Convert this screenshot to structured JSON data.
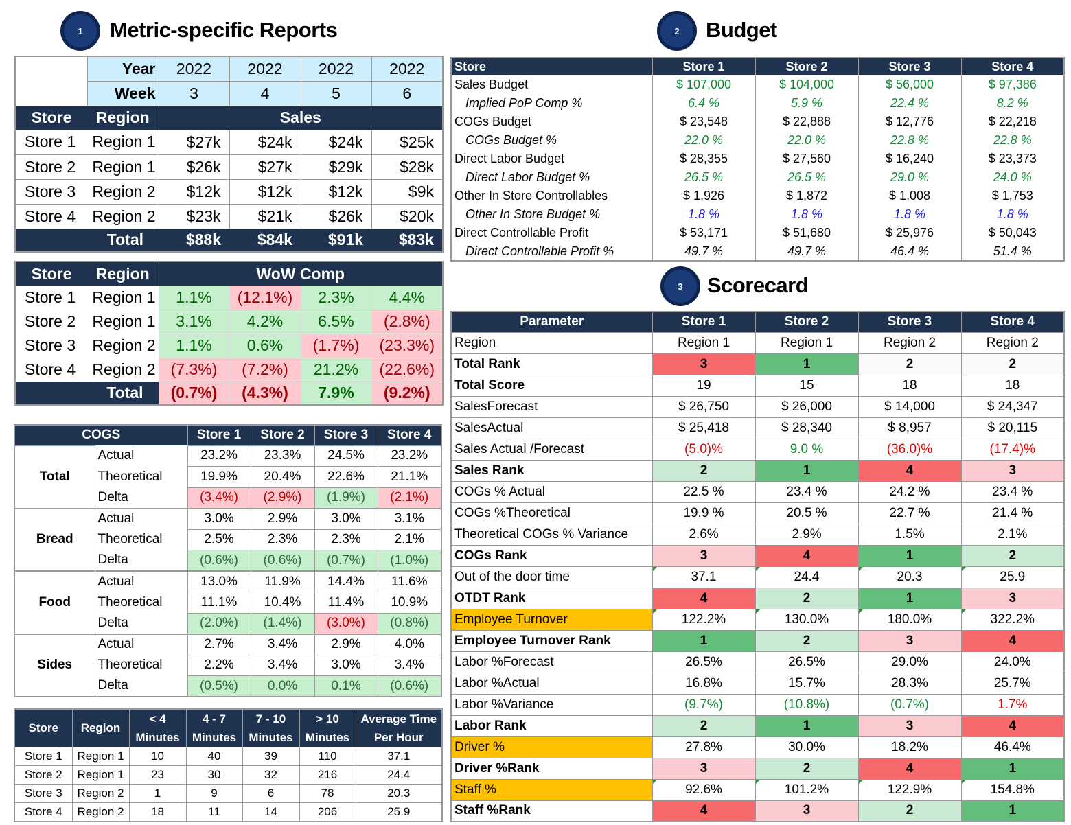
{
  "titles": {
    "s1_num": "1",
    "s1": "Metric-specific Reports",
    "s2_num": "2",
    "s2": "Budget",
    "s3_num": "3",
    "s3": "Scorecard"
  },
  "sales": {
    "year_label": "Year",
    "week_label": "Week",
    "years": [
      "2022",
      "2022",
      "2022",
      "2022"
    ],
    "weeks": [
      "3",
      "4",
      "5",
      "6"
    ],
    "store_h": "Store",
    "region_h": "Region",
    "title": "Sales",
    "rows": [
      {
        "store": "Store 1",
        "region": "Region 1",
        "v": [
          "$27k",
          "$24k",
          "$24k",
          "$25k"
        ]
      },
      {
        "store": "Store 2",
        "region": "Region 1",
        "v": [
          "$26k",
          "$27k",
          "$29k",
          "$28k"
        ]
      },
      {
        "store": "Store 3",
        "region": "Region 2",
        "v": [
          "$12k",
          "$12k",
          "$12k",
          "$9k"
        ]
      },
      {
        "store": "Store 4",
        "region": "Region 2",
        "v": [
          "$23k",
          "$21k",
          "$26k",
          "$20k"
        ]
      }
    ],
    "total_label": "Total",
    "total": [
      "$88k",
      "$84k",
      "$91k",
      "$83k"
    ]
  },
  "wow": {
    "store_h": "Store",
    "region_h": "Region",
    "title": "WoW Comp",
    "rows": [
      {
        "store": "Store 1",
        "region": "Region 1",
        "v": [
          "1.1%",
          "(12.1%)",
          "2.3%",
          "4.4%"
        ]
      },
      {
        "store": "Store 2",
        "region": "Region 1",
        "v": [
          "3.1%",
          "4.2%",
          "6.5%",
          "(2.8%)"
        ]
      },
      {
        "store": "Store 3",
        "region": "Region 2",
        "v": [
          "1.1%",
          "0.6%",
          "(1.7%)",
          "(23.3%)"
        ]
      },
      {
        "store": "Store 4",
        "region": "Region 2",
        "v": [
          "(7.3%)",
          "(7.2%)",
          "21.2%",
          "(22.6%)"
        ]
      }
    ],
    "total_label": "Total",
    "total": [
      "(0.7%)",
      "(4.3%)",
      "7.9%",
      "(9.2%)"
    ]
  },
  "cogs": {
    "title": "COGS",
    "stores": [
      "Store 1",
      "Store 2",
      "Store 3",
      "Store 4"
    ],
    "groups": [
      {
        "name": "Total",
        "rows": [
          {
            "label": "Actual",
            "v": [
              "23.2%",
              "23.3%",
              "24.5%",
              "23.2%"
            ]
          },
          {
            "label": "Theoretical",
            "v": [
              "19.9%",
              "20.4%",
              "22.6%",
              "21.1%"
            ]
          },
          {
            "label": "Delta",
            "v": [
              "(3.4%)",
              "(2.9%)",
              "(1.9%)",
              "(2.1%)"
            ]
          }
        ]
      },
      {
        "name": "Bread",
        "rows": [
          {
            "label": "Actual",
            "v": [
              "3.0%",
              "2.9%",
              "3.0%",
              "3.1%"
            ]
          },
          {
            "label": "Theoretical",
            "v": [
              "2.5%",
              "2.3%",
              "2.3%",
              "2.1%"
            ]
          },
          {
            "label": "Delta",
            "v": [
              "(0.6%)",
              "(0.6%)",
              "(0.7%)",
              "(1.0%)"
            ]
          }
        ]
      },
      {
        "name": "Food",
        "rows": [
          {
            "label": "Actual",
            "v": [
              "13.0%",
              "11.9%",
              "14.4%",
              "11.6%"
            ]
          },
          {
            "label": "Theoretical",
            "v": [
              "11.1%",
              "10.4%",
              "11.4%",
              "10.9%"
            ]
          },
          {
            "label": "Delta",
            "v": [
              "(2.0%)",
              "(1.4%)",
              "(3.0%)",
              "(0.8%)"
            ]
          }
        ]
      },
      {
        "name": "Sides",
        "rows": [
          {
            "label": "Actual",
            "v": [
              "2.7%",
              "3.4%",
              "2.9%",
              "4.0%"
            ]
          },
          {
            "label": "Theoretical",
            "v": [
              "2.2%",
              "3.4%",
              "3.0%",
              "3.4%"
            ]
          },
          {
            "label": "Delta",
            "v": [
              "(0.5%)",
              "0.0%",
              "0.1%",
              "(0.6%)"
            ]
          }
        ]
      }
    ]
  },
  "otd": {
    "headers": [
      "Store",
      "Region",
      "< 4",
      "4 - 7",
      "7 - 10",
      "> 10",
      "Average Time"
    ],
    "headers2": [
      "",
      "",
      "Minutes",
      "Minutes",
      "Minutes",
      "Minutes",
      "Per Hour"
    ],
    "rows": [
      [
        "Store 1",
        "Region 1",
        "10",
        "40",
        "39",
        "110",
        "37.1"
      ],
      [
        "Store 2",
        "Region 1",
        "23",
        "30",
        "32",
        "216",
        "24.4"
      ],
      [
        "Store 3",
        "Region 2",
        "1",
        "9",
        "6",
        "78",
        "20.3"
      ],
      [
        "Store 4",
        "Region 2",
        "18",
        "11",
        "14",
        "206",
        "25.9"
      ]
    ]
  },
  "budget": {
    "header": [
      "Store",
      "Store 1",
      "Store 2",
      "Store 3",
      "Store 4"
    ],
    "rows": [
      {
        "label": "Sales Budget",
        "v": [
          "$ 107,000",
          "$ 104,000",
          "$ 56,000",
          "$ 97,386"
        ]
      },
      {
        "label": "Implied PoP Comp %",
        "v": [
          "6.4 %",
          "5.9 %",
          "22.4 %",
          "8.2 %"
        ]
      },
      {
        "label": "COGs Budget",
        "v": [
          "$ 23,548",
          "$ 22,888",
          "$ 12,776",
          "$ 22,218"
        ]
      },
      {
        "label": "COGs Budget %",
        "v": [
          "22.0 %",
          "22.0 %",
          "22.8 %",
          "22.8 %"
        ]
      },
      {
        "label": "Direct Labor Budget",
        "v": [
          "$ 28,355",
          "$ 27,560",
          "$ 16,240",
          "$ 23,373"
        ]
      },
      {
        "label": "Direct Labor Budget %",
        "v": [
          "26.5 %",
          "26.5 %",
          "29.0 %",
          "24.0 %"
        ]
      },
      {
        "label": "Other In Store Controllables",
        "v": [
          "$ 1,926",
          "$ 1,872",
          "$ 1,008",
          "$ 1,753"
        ]
      },
      {
        "label": "Other In Store Budget %",
        "v": [
          "1.8 %",
          "1.8 %",
          "1.8 %",
          "1.8 %"
        ]
      },
      {
        "label": "Direct Controllable Profit",
        "v": [
          "$ 53,171",
          "$ 51,680",
          "$ 25,976",
          "$ 50,043"
        ]
      },
      {
        "label": "Direct Controllable Profit %",
        "v": [
          "49.7 %",
          "49.7 %",
          "46.4 %",
          "51.4 %"
        ]
      }
    ]
  },
  "scorecard": {
    "header": [
      "Parameter",
      "Store 1",
      "Store 2",
      "Store 3",
      "Store 4"
    ],
    "rows": [
      {
        "label": "Region",
        "v": [
          "Region 1",
          "Region 1",
          "Region 2",
          "Region 2"
        ]
      },
      {
        "label": "Total Rank",
        "v": [
          "3",
          "1",
          "2",
          "2"
        ]
      },
      {
        "label": "Total Score",
        "v": [
          "19",
          "15",
          "18",
          "18"
        ]
      },
      {
        "label": "SalesForecast",
        "v": [
          "$ 26,750",
          "$ 26,000",
          "$ 14,000",
          "$ 24,347"
        ]
      },
      {
        "label": "SalesActual",
        "v": [
          "$ 25,418",
          "$ 28,340",
          "$ 8,957",
          "$ 20,115"
        ]
      },
      {
        "label": "Sales Actual /Forecast",
        "v": [
          "(5.0)%",
          "9.0 %",
          "(36.0)%",
          "(17.4)%"
        ]
      },
      {
        "label": "Sales Rank",
        "v": [
          "2",
          "1",
          "4",
          "3"
        ]
      },
      {
        "label": "COGs % Actual",
        "v": [
          "22.5 %",
          "23.4 %",
          "24.2 %",
          "23.4 %"
        ]
      },
      {
        "label": "COGs %Theoretical",
        "v": [
          "19.9 %",
          "20.5 %",
          "22.7 %",
          "21.4 %"
        ]
      },
      {
        "label": "Theoretical COGs % Variance",
        "v": [
          "2.6%",
          "2.9%",
          "1.5%",
          "2.1%"
        ]
      },
      {
        "label": "COGs Rank",
        "v": [
          "3",
          "4",
          "1",
          "2"
        ]
      },
      {
        "label": "Out of the door time",
        "v": [
          "37.1",
          "24.4",
          "20.3",
          "25.9"
        ]
      },
      {
        "label": "OTDT Rank",
        "v": [
          "4",
          "2",
          "1",
          "3"
        ]
      },
      {
        "label": "Employee Turnover",
        "v": [
          "122.2%",
          "130.0%",
          "180.0%",
          "322.2%"
        ]
      },
      {
        "label": "Employee Turnover Rank",
        "v": [
          "1",
          "2",
          "3",
          "4"
        ]
      },
      {
        "label": "Labor %Forecast",
        "v": [
          "26.5%",
          "26.5%",
          "29.0%",
          "24.0%"
        ]
      },
      {
        "label": "Labor %Actual",
        "v": [
          "16.8%",
          "15.7%",
          "28.3%",
          "25.7%"
        ]
      },
      {
        "label": "Labor %Variance",
        "v": [
          "(9.7%)",
          "(10.8%)",
          "(0.7%)",
          "1.7%"
        ]
      },
      {
        "label": "Labor Rank",
        "v": [
          "2",
          "1",
          "3",
          "4"
        ]
      },
      {
        "label": "Driver %",
        "v": [
          "27.8%",
          "30.0%",
          "18.2%",
          "46.4%"
        ]
      },
      {
        "label": "Driver %Rank",
        "v": [
          "3",
          "2",
          "4",
          "1"
        ]
      },
      {
        "label": "Staff %",
        "v": [
          "92.6%",
          "101.2%",
          "122.9%",
          "154.8%"
        ]
      },
      {
        "label": "Staff %Rank",
        "v": [
          "4",
          "3",
          "2",
          "1"
        ]
      }
    ]
  }
}
